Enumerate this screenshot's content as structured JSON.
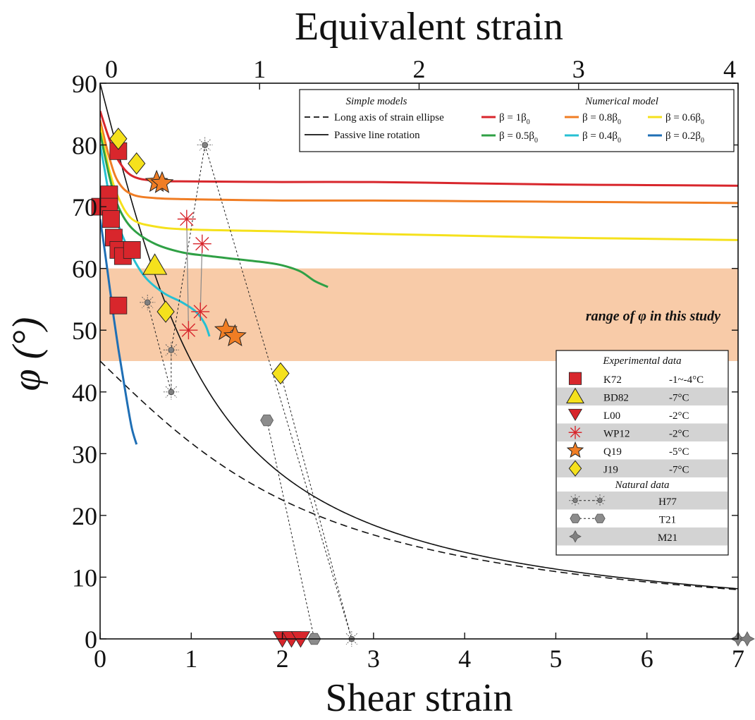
{
  "chart_data": {
    "type": "scatter",
    "xlabel": "Shear strain",
    "ylabel": "φ (°)",
    "top_axis_label": "Equivalent strain",
    "xlim": [
      0,
      7
    ],
    "ylim": [
      0,
      90
    ],
    "top_xlim": [
      0,
      4
    ],
    "x_ticks": [
      "0",
      "1",
      "2",
      "3",
      "4",
      "5",
      "6",
      "7"
    ],
    "y_ticks": [
      "0",
      "10",
      "20",
      "30",
      "40",
      "50",
      "60",
      "70",
      "80",
      "90"
    ],
    "top_ticks": [
      "0",
      "1",
      "2",
      "3",
      "4"
    ],
    "grid": false,
    "band": {
      "y_range": [
        45,
        60
      ],
      "color": "#f8cba8",
      "label": "range of φ in this study"
    },
    "simple_models": [
      {
        "name": "Long axis of strain ellipse",
        "style": "dashed",
        "color": "#111111"
      },
      {
        "name": "Passive line rotation",
        "style": "solid",
        "color": "#111111"
      }
    ],
    "numerical_model": [
      {
        "name": "β = 1β",
        "sub": "0",
        "color": "#d8262c",
        "points": [
          [
            0,
            85.5
          ],
          [
            0.1,
            81
          ],
          [
            0.2,
            77.5
          ],
          [
            0.35,
            75
          ],
          [
            0.6,
            74.2
          ],
          [
            1,
            74.1
          ],
          [
            2,
            74
          ],
          [
            3,
            74
          ],
          [
            4,
            73.8
          ],
          [
            5,
            73.6
          ],
          [
            6,
            73.5
          ],
          [
            7,
            73.4
          ]
        ]
      },
      {
        "name": "β = 0.8β",
        "sub": "0",
        "color": "#f07d24",
        "points": [
          [
            0,
            84
          ],
          [
            0.1,
            78
          ],
          [
            0.2,
            74
          ],
          [
            0.35,
            72
          ],
          [
            0.6,
            71.4
          ],
          [
            1,
            71.2
          ],
          [
            2,
            71
          ],
          [
            3,
            71
          ],
          [
            4,
            70.9
          ],
          [
            5,
            70.8
          ],
          [
            6,
            70.7
          ],
          [
            7,
            70.6
          ]
        ]
      },
      {
        "name": "β = 0.6β",
        "sub": "0",
        "color": "#f5e11c",
        "points": [
          [
            0,
            83
          ],
          [
            0.1,
            76
          ],
          [
            0.2,
            71.5
          ],
          [
            0.35,
            68
          ],
          [
            0.6,
            66.8
          ],
          [
            1,
            66.3
          ],
          [
            2,
            66
          ],
          [
            3,
            65.6
          ],
          [
            4,
            65.3
          ],
          [
            5,
            65
          ],
          [
            6,
            64.8
          ],
          [
            7,
            64.6
          ]
        ]
      },
      {
        "name": "β = 0.5β",
        "sub": "0",
        "color": "#2fa045",
        "points": [
          [
            0,
            82
          ],
          [
            0.1,
            75
          ],
          [
            0.2,
            70
          ],
          [
            0.35,
            66.5
          ],
          [
            0.6,
            64
          ],
          [
            0.9,
            62.6
          ],
          [
            1.2,
            62
          ],
          [
            1.5,
            61.5
          ],
          [
            1.8,
            61
          ],
          [
            2.0,
            60.5
          ],
          [
            2.2,
            59.5
          ],
          [
            2.35,
            58
          ],
          [
            2.5,
            57
          ]
        ]
      },
      {
        "name": "β = 0.4β",
        "sub": "0",
        "color": "#26c0d3",
        "points": [
          [
            0,
            80
          ],
          [
            0.05,
            76
          ],
          [
            0.1,
            72
          ],
          [
            0.2,
            67
          ],
          [
            0.35,
            62
          ],
          [
            0.5,
            58.5
          ],
          [
            0.7,
            56
          ],
          [
            0.9,
            54.5
          ],
          [
            1.05,
            53
          ],
          [
            1.15,
            51
          ],
          [
            1.2,
            49
          ]
        ]
      },
      {
        "name": "β = 0.2β",
        "sub": "0",
        "color": "#1f6fb5",
        "points": [
          [
            0,
            68
          ],
          [
            0.05,
            63
          ],
          [
            0.1,
            57.5
          ],
          [
            0.15,
            52
          ],
          [
            0.2,
            47
          ],
          [
            0.25,
            42.5
          ],
          [
            0.3,
            38
          ],
          [
            0.35,
            34
          ],
          [
            0.4,
            31.5
          ]
        ]
      }
    ],
    "experimental_data": [
      {
        "name": "K72",
        "temp": "-1~-4°C",
        "marker": "square",
        "color": "#d8262c",
        "points": [
          [
            0,
            70
          ],
          [
            0.1,
            72
          ],
          [
            0.1,
            70
          ],
          [
            0.12,
            68
          ],
          [
            0.15,
            65
          ],
          [
            0.2,
            63
          ],
          [
            0.25,
            62
          ],
          [
            0.35,
            63
          ],
          [
            0.2,
            79
          ],
          [
            0.2,
            54
          ]
        ]
      },
      {
        "name": "BD82",
        "temp": "-7°C",
        "marker": "triangle-up",
        "color": "#f5e11c",
        "points": [
          [
            0.6,
            60.5
          ]
        ]
      },
      {
        "name": "L00",
        "temp": "-2°C",
        "marker": "triangle-down",
        "color": "#d8262c",
        "points": [
          [
            2.0,
            0
          ],
          [
            2.1,
            0
          ],
          [
            2.2,
            0
          ]
        ]
      },
      {
        "name": "WP12",
        "temp": "-2°C",
        "marker": "asterisk",
        "color": "#d8262c",
        "points": [
          [
            0.95,
            68
          ],
          [
            1.12,
            64
          ],
          [
            0.97,
            50
          ],
          [
            1.1,
            53
          ]
        ]
      },
      {
        "name": "Q19",
        "temp": "-5°C",
        "marker": "star",
        "color": "#f07d24",
        "points": [
          [
            0.62,
            74
          ],
          [
            0.68,
            73.8
          ],
          [
            1.38,
            50
          ],
          [
            1.48,
            49
          ]
        ]
      },
      {
        "name": "J19",
        "temp": "-7°C",
        "marker": "diamond",
        "color": "#f5e11c",
        "points": [
          [
            0.2,
            81
          ],
          [
            0.4,
            77
          ],
          [
            0.72,
            53
          ],
          [
            1.98,
            43
          ]
        ]
      }
    ],
    "natural_data": [
      {
        "name": "H77",
        "marker": "spiked-dot",
        "color": "#808080",
        "points": [
          [
            1.15,
            80
          ],
          [
            0.52,
            54.5
          ],
          [
            0.78,
            46.8
          ],
          [
            0.78,
            40
          ],
          [
            2.76,
            0
          ]
        ]
      },
      {
        "name": "T21",
        "marker": "hexagon",
        "color": "#8c8c8c",
        "points": [
          [
            1.83,
            35.4
          ],
          [
            2.35,
            0
          ]
        ]
      },
      {
        "name": "M21",
        "marker": "four-point",
        "color": "#808080",
        "points": [
          [
            7,
            0
          ],
          [
            7.1,
            0
          ]
        ]
      }
    ],
    "connectors": [
      {
        "style": "dotted",
        "color": "#222222",
        "points": [
          [
            1.15,
            80
          ],
          [
            2.76,
            0
          ]
        ]
      },
      {
        "style": "dotted",
        "color": "#222222",
        "points": [
          [
            1.15,
            80
          ],
          [
            0.78,
            46.8
          ]
        ]
      },
      {
        "style": "dotted",
        "color": "#222222",
        "points": [
          [
            0.52,
            54.5
          ],
          [
            0.78,
            40
          ]
        ]
      },
      {
        "style": "dotted",
        "color": "#222222",
        "points": [
          [
            0.78,
            46.8
          ],
          [
            0.78,
            40
          ]
        ]
      },
      {
        "style": "dotted",
        "color": "#222222",
        "points": [
          [
            1.83,
            35.4
          ],
          [
            2.35,
            0
          ]
        ]
      },
      {
        "style": "dotted",
        "color": "#222222",
        "points": [
          [
            1.98,
            43
          ],
          [
            2.76,
            0
          ]
        ]
      },
      {
        "style": "dotted",
        "color": "#222222",
        "points": [
          [
            2.35,
            0
          ],
          [
            7.1,
            0
          ]
        ]
      },
      {
        "style": "solid-thin",
        "color": "#888888",
        "points": [
          [
            0.95,
            68
          ],
          [
            0.97,
            50
          ]
        ]
      },
      {
        "style": "solid-thin",
        "color": "#888888",
        "points": [
          [
            1.12,
            64
          ],
          [
            1.1,
            53
          ]
        ]
      }
    ],
    "legend_top": {
      "simple_title": "Simple models",
      "numerical_title": "Numerical model"
    },
    "legend_right": {
      "experimental_title": "Experimental data",
      "natural_title": "Natural data"
    }
  }
}
